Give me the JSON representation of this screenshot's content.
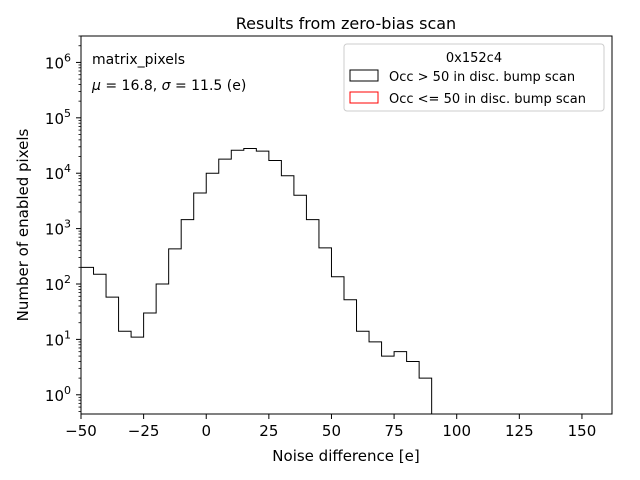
{
  "chart_data": {
    "type": "bar",
    "histtype": "step",
    "title": "Results from zero-bias scan",
    "xlabel": "Noise difference [e]",
    "ylabel": "Number of enabled pixels",
    "xlim": [
      -50,
      162
    ],
    "ylim": [
      0.45,
      3000000
    ],
    "yscale": "log",
    "xticks": [
      "−50",
      "−25",
      "0",
      "25",
      "50",
      "75",
      "100",
      "125",
      "150"
    ],
    "xtick_values": [
      -50,
      -25,
      0,
      25,
      50,
      75,
      100,
      125,
      150
    ],
    "ytick_values": [
      1,
      10,
      100,
      1000,
      10000,
      100000,
      1000000
    ],
    "ytick_exponents": [
      "0",
      "1",
      "2",
      "3",
      "4",
      "5",
      "6"
    ],
    "ytick_base": "10",
    "annotations": {
      "line1": "matrix_pixels",
      "line2_mu_symbol": "μ",
      "line2_mu_value": " = 16.8, ",
      "line2_sigma_symbol": "σ",
      "line2_sigma_value": " = 11.5 (e)"
    },
    "legend": {
      "title": "0x152c4",
      "placement": "top-right",
      "entries": [
        {
          "label": "Occ > 50 in disc. bump scan",
          "color": "#000000"
        },
        {
          "label": "Occ <= 50 in disc. bump scan",
          "color": "#ff0000"
        }
      ]
    },
    "series": [
      {
        "name": "Occ > 50 in disc. bump scan",
        "color": "#000000",
        "bins": [
          {
            "x0": -55,
            "x1": -45,
            "value": 200
          },
          {
            "x0": -45,
            "x1": -40,
            "value": 150
          },
          {
            "x0": -40,
            "x1": -35,
            "value": 58
          },
          {
            "x0": -35,
            "x1": -30,
            "value": 14
          },
          {
            "x0": -30,
            "x1": -25,
            "value": 11
          },
          {
            "x0": -25,
            "x1": -20,
            "value": 30
          },
          {
            "x0": -20,
            "x1": -15,
            "value": 100
          },
          {
            "x0": -15,
            "x1": -10,
            "value": 430
          },
          {
            "x0": -10,
            "x1": -5,
            "value": 1450
          },
          {
            "x0": -5,
            "x1": 0,
            "value": 4400
          },
          {
            "x0": 0,
            "x1": 5,
            "value": 10000
          },
          {
            "x0": 5,
            "x1": 10,
            "value": 18000
          },
          {
            "x0": 10,
            "x1": 15,
            "value": 26000
          },
          {
            "x0": 15,
            "x1": 20,
            "value": 28000
          },
          {
            "x0": 20,
            "x1": 25,
            "value": 25000
          },
          {
            "x0": 25,
            "x1": 30,
            "value": 17000
          },
          {
            "x0": 30,
            "x1": 35,
            "value": 9000
          },
          {
            "x0": 35,
            "x1": 40,
            "value": 4000
          },
          {
            "x0": 40,
            "x1": 45,
            "value": 1450
          },
          {
            "x0": 45,
            "x1": 50,
            "value": 450
          },
          {
            "x0": 50,
            "x1": 55,
            "value": 135
          },
          {
            "x0": 55,
            "x1": 60,
            "value": 52
          },
          {
            "x0": 60,
            "x1": 65,
            "value": 14
          },
          {
            "x0": 65,
            "x1": 70,
            "value": 9
          },
          {
            "x0": 70,
            "x1": 75,
            "value": 5
          },
          {
            "x0": 75,
            "x1": 80,
            "value": 6
          },
          {
            "x0": 80,
            "x1": 85,
            "value": 4
          },
          {
            "x0": 85,
            "x1": 90,
            "value": 2
          }
        ]
      },
      {
        "name": "Occ <= 50 in disc. bump scan",
        "color": "#ff0000",
        "bins": []
      }
    ]
  }
}
